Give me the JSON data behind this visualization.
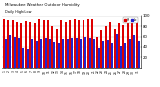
{
  "title": "Milwaukee Weather Outdoor Humidity",
  "subtitle": "Daily High/Low",
  "high_color": "#dd0000",
  "low_color": "#2222cc",
  "background_color": "#ffffff",
  "legend_high_label": "Hi",
  "legend_low_label": "Lo",
  "ylim": [
    0,
    100
  ],
  "yticks": [
    20,
    40,
    60,
    80,
    100
  ],
  "days": [
    "1",
    "2",
    "3",
    "4",
    "5",
    "6",
    "7",
    "8",
    "9",
    "10",
    "11",
    "12",
    "13",
    "14",
    "15",
    "16",
    "17",
    "18",
    "19",
    "20",
    "21",
    "22",
    "23",
    "24",
    "25",
    "26",
    "27",
    "28",
    "29",
    "30",
    "31"
  ],
  "highs": [
    93,
    91,
    91,
    88,
    86,
    90,
    87,
    85,
    93,
    92,
    91,
    80,
    75,
    92,
    88,
    92,
    93,
    91,
    92,
    93,
    94,
    60,
    72,
    80,
    88,
    75,
    85,
    83,
    88,
    86,
    88
  ],
  "lows": [
    55,
    62,
    60,
    58,
    38,
    36,
    55,
    52,
    55,
    58,
    56,
    50,
    48,
    55,
    55,
    58,
    57,
    56,
    60,
    58,
    55,
    38,
    52,
    54,
    48,
    65,
    42,
    48,
    55,
    62,
    52
  ]
}
